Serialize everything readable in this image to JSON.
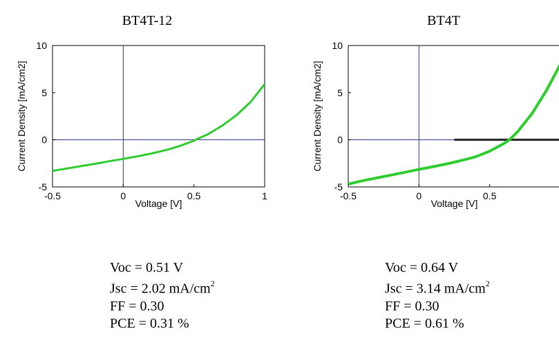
{
  "colors": {
    "curve": "#2ecc2e",
    "frame": "#000000",
    "origin_lines": "#2e2e8a",
    "zero_line_right": "#222222"
  },
  "chart_data": [
    {
      "type": "line",
      "title": "BT4T-12",
      "xlabel": "Voltage [V]",
      "ylabel": "Current Density [mA/cm2]",
      "xlim": [
        -0.5,
        1.0
      ],
      "ylim": [
        -5,
        10
      ],
      "x_ticks": [
        "-0.5",
        "0",
        "0.5",
        "1"
      ],
      "y_ticks": [
        "-5",
        "0",
        "5",
        "10"
      ],
      "grid": false,
      "series": [
        {
          "x": [
            -0.5,
            -0.4,
            -0.3,
            -0.2,
            -0.1,
            0.0,
            0.1,
            0.2,
            0.3,
            0.4,
            0.5,
            0.51,
            0.6,
            0.7,
            0.8,
            0.9,
            1.0
          ],
          "y": [
            -3.3,
            -3.05,
            -2.8,
            -2.55,
            -2.28,
            -2.02,
            -1.75,
            -1.45,
            -1.1,
            -0.65,
            -0.1,
            0.0,
            0.6,
            1.5,
            2.6,
            4.0,
            5.9
          ]
        }
      ],
      "metrics": {
        "voc": "Voc = 0.51 V",
        "jsc_prefix": "Jsc = 2.02 mA/cm",
        "jsc_exp": "2",
        "ff": "FF = 0.30",
        "pce": "PCE = 0.31 %"
      }
    },
    {
      "type": "line",
      "title": "BT4T",
      "xlabel": "Voltage [V]",
      "ylabel": "Current Density [mA/cm2]",
      "xlim": [
        -0.5,
        1.0
      ],
      "ylim": [
        -5,
        10
      ],
      "x_ticks": [
        "-0.5",
        "0",
        "0.5"
      ],
      "y_ticks": [
        "-5",
        "0",
        "5",
        "10"
      ],
      "grid": false,
      "series": [
        {
          "x": [
            -0.5,
            -0.4,
            -0.3,
            -0.2,
            -0.1,
            0.0,
            0.1,
            0.2,
            0.3,
            0.4,
            0.5,
            0.6,
            0.64,
            0.7,
            0.8,
            0.9,
            1.0
          ],
          "y": [
            -4.7,
            -4.35,
            -4.05,
            -3.75,
            -3.45,
            -3.14,
            -2.85,
            -2.55,
            -2.2,
            -1.8,
            -1.2,
            -0.4,
            0.0,
            0.9,
            2.8,
            5.2,
            8.0
          ]
        }
      ],
      "metrics": {
        "voc": "Voc = 0.64 V",
        "jsc_prefix": "Jsc = 3.14 mA/cm",
        "jsc_exp": "2",
        "ff": "FF = 0.30",
        "pce": "PCE = 0.61 %"
      }
    }
  ]
}
